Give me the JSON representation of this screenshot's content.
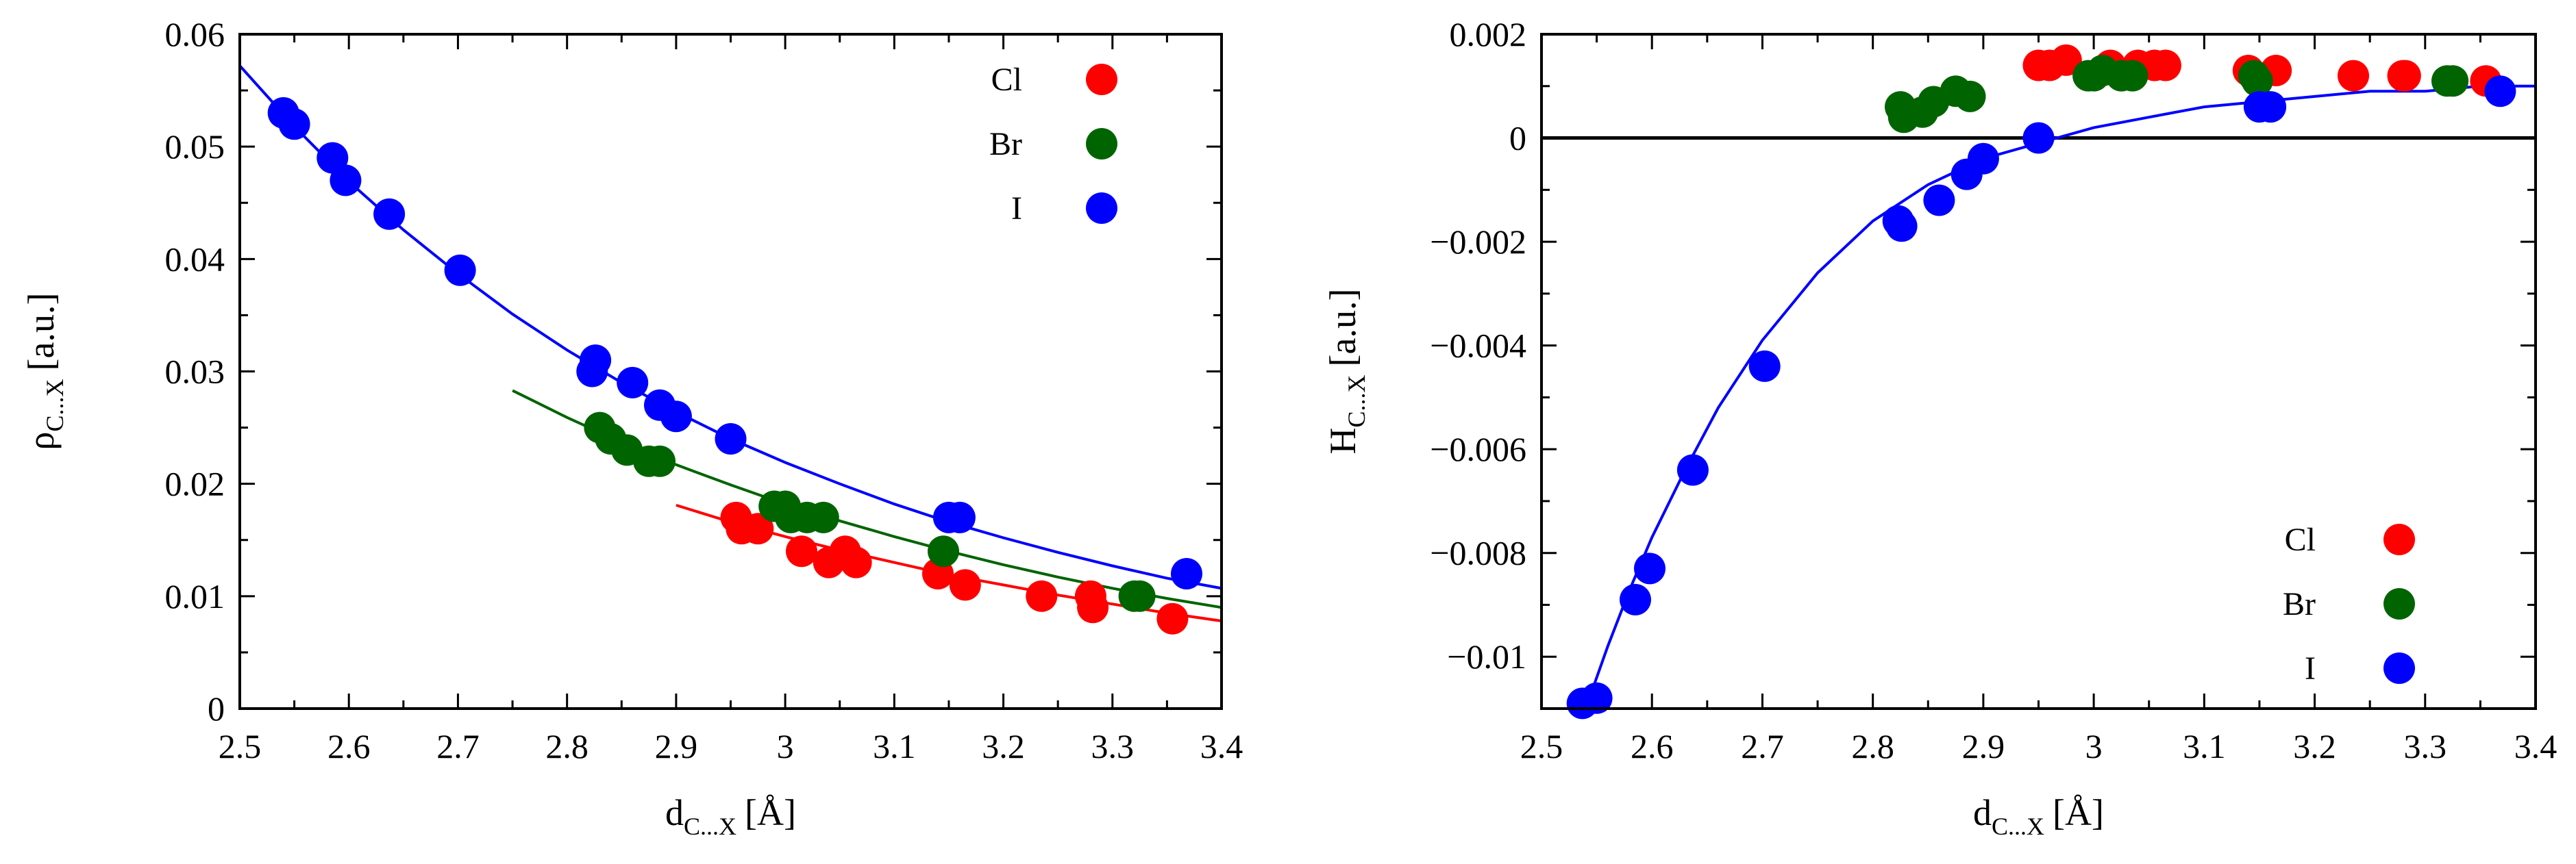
{
  "chart_data": [
    {
      "type": "scatter",
      "title": "",
      "xlabel": {
        "main": "d",
        "sub": "C...X",
        "unit": "[Å]"
      },
      "ylabel": {
        "main": "ρ",
        "sub": "C...X",
        "unit": "[a.u.]"
      },
      "xlim": [
        2.5,
        3.4
      ],
      "ylim": [
        0,
        0.06
      ],
      "xticks": [
        2.5,
        2.6,
        2.7,
        2.8,
        2.9,
        3.0,
        3.1,
        3.2,
        3.3,
        3.4
      ],
      "xtick_labels": [
        "2.5",
        "2.6",
        "2.7",
        "2.8",
        "2.9",
        "3",
        "3.1",
        "3.2",
        "3.3",
        "3.4"
      ],
      "yticks": [
        0,
        0.01,
        0.02,
        0.03,
        0.04,
        0.05,
        0.06
      ],
      "ytick_labels": [
        "0",
        "0.01",
        "0.02",
        "0.03",
        "0.04",
        "0.05",
        "0.06"
      ],
      "legend_position": "top-right",
      "series": [
        {
          "name": "Cl",
          "color": "#ff0000",
          "points": [
            [
              2.955,
              0.017
            ],
            [
              2.96,
              0.016
            ],
            [
              2.975,
              0.016
            ],
            [
              3.015,
              0.014
            ],
            [
              3.04,
              0.013
            ],
            [
              3.055,
              0.014
            ],
            [
              3.065,
              0.013
            ],
            [
              3.14,
              0.012
            ],
            [
              3.165,
              0.011
            ],
            [
              3.235,
              0.01
            ],
            [
              3.28,
              0.01
            ],
            [
              3.282,
              0.009
            ],
            [
              3.355,
              0.008
            ]
          ],
          "fit": {
            "x": [
              2.9,
              2.95,
              3.0,
              3.05,
              3.1,
              3.15,
              3.2,
              3.25,
              3.3,
              3.35,
              3.4
            ],
            "y": [
              0.0181,
              0.0166,
              0.0153,
              0.0141,
              0.013,
              0.0119,
              0.011,
              0.0101,
              0.0093,
              0.0085,
              0.0078
            ]
          }
        },
        {
          "name": "Br",
          "color": "#006400",
          "points": [
            [
              2.83,
              0.025
            ],
            [
              2.84,
              0.024
            ],
            [
              2.855,
              0.023
            ],
            [
              2.875,
              0.022
            ],
            [
              2.885,
              0.022
            ],
            [
              2.99,
              0.018
            ],
            [
              3.0,
              0.018
            ],
            [
              3.005,
              0.017
            ],
            [
              3.02,
              0.017
            ],
            [
              3.035,
              0.017
            ],
            [
              3.145,
              0.014
            ],
            [
              3.32,
              0.01
            ],
            [
              3.325,
              0.01
            ]
          ],
          "fit": {
            "x": [
              2.75,
              2.8,
              2.85,
              2.9,
              2.95,
              3.0,
              3.05,
              3.1,
              3.15,
              3.2,
              3.25,
              3.3,
              3.35,
              3.4
            ],
            "y": [
              0.0283,
              0.0259,
              0.0237,
              0.0217,
              0.0199,
              0.0182,
              0.0167,
              0.0153,
              0.014,
              0.0128,
              0.0117,
              0.0107,
              0.0098,
              0.009
            ]
          }
        },
        {
          "name": "I",
          "color": "#0000ff",
          "points": [
            [
              2.54,
              0.053
            ],
            [
              2.55,
              0.052
            ],
            [
              2.585,
              0.049
            ],
            [
              2.597,
              0.047
            ],
            [
              2.637,
              0.044
            ],
            [
              2.702,
              0.039
            ],
            [
              2.823,
              0.03
            ],
            [
              2.826,
              0.031
            ],
            [
              2.86,
              0.029
            ],
            [
              2.885,
              0.027
            ],
            [
              2.9,
              0.026
            ],
            [
              2.95,
              0.024
            ],
            [
              3.15,
              0.017
            ],
            [
              3.16,
              0.017
            ],
            [
              3.368,
              0.012
            ]
          ],
          "fit": {
            "x": [
              2.5,
              2.55,
              2.6,
              2.65,
              2.7,
              2.75,
              2.8,
              2.85,
              2.9,
              2.95,
              3.0,
              3.05,
              3.1,
              3.15,
              3.2,
              3.25,
              3.3,
              3.35,
              3.4
            ],
            "y": [
              0.0572,
              0.0518,
              0.0469,
              0.0426,
              0.0387,
              0.0351,
              0.0319,
              0.029,
              0.0264,
              0.024,
              0.0219,
              0.02,
              0.0182,
              0.0166,
              0.0152,
              0.0139,
              0.0127,
              0.0116,
              0.0107
            ]
          }
        }
      ]
    },
    {
      "type": "scatter",
      "title": "",
      "xlabel": {
        "main": "d",
        "sub": "C...X",
        "unit": "[Å]"
      },
      "ylabel": {
        "main": "H",
        "sub": "C...X",
        "unit": "[a.u.]"
      },
      "xlim": [
        2.5,
        3.4
      ],
      "ylim": [
        -0.011,
        0.002
      ],
      "xticks": [
        2.5,
        2.6,
        2.7,
        2.8,
        2.9,
        3.0,
        3.1,
        3.2,
        3.3,
        3.4
      ],
      "xtick_labels": [
        "2.5",
        "2.6",
        "2.7",
        "2.8",
        "2.9",
        "3",
        "3.1",
        "3.2",
        "3.3",
        "3.4"
      ],
      "yticks": [
        -0.01,
        -0.008,
        -0.006,
        -0.004,
        -0.002,
        0,
        0.002
      ],
      "ytick_labels": [
        "−0.01",
        "−0.008",
        "−0.006",
        "−0.004",
        "−0.002",
        "0",
        "0.002"
      ],
      "zero_line": true,
      "legend_position": "bottom-right",
      "series": [
        {
          "name": "Cl",
          "color": "#ff0000",
          "points": [
            [
              2.95,
              0.0014
            ],
            [
              2.96,
              0.0014
            ],
            [
              2.975,
              0.0015
            ],
            [
              3.015,
              0.0014
            ],
            [
              3.04,
              0.0014
            ],
            [
              3.055,
              0.0014
            ],
            [
              3.065,
              0.0014
            ],
            [
              3.14,
              0.0013
            ],
            [
              3.165,
              0.0013
            ],
            [
              3.235,
              0.0012
            ],
            [
              3.28,
              0.0012
            ],
            [
              3.282,
              0.0012
            ],
            [
              3.355,
              0.0011
            ]
          ]
        },
        {
          "name": "Br",
          "color": "#006400",
          "points": [
            [
              2.825,
              0.0006
            ],
            [
              2.828,
              0.0004
            ],
            [
              2.845,
              0.0005
            ],
            [
              2.855,
              0.0007
            ],
            [
              2.875,
              0.0009
            ],
            [
              2.888,
              0.0008
            ],
            [
              2.995,
              0.0012
            ],
            [
              3.0,
              0.0012
            ],
            [
              3.008,
              0.0013
            ],
            [
              3.025,
              0.0012
            ],
            [
              3.035,
              0.0012
            ],
            [
              3.145,
              0.0012
            ],
            [
              3.148,
              0.0011
            ],
            [
              3.32,
              0.0011
            ],
            [
              3.325,
              0.0011
            ]
          ]
        },
        {
          "name": "I",
          "color": "#0000ff",
          "points": [
            [
              2.537,
              -0.0109
            ],
            [
              2.55,
              -0.0108
            ],
            [
              2.585,
              -0.0089
            ],
            [
              2.598,
              -0.0083
            ],
            [
              2.637,
              -0.0064
            ],
            [
              2.702,
              -0.0044
            ],
            [
              2.823,
              -0.0016
            ],
            [
              2.826,
              -0.0017
            ],
            [
              2.86,
              -0.0012
            ],
            [
              2.885,
              -0.0007
            ],
            [
              2.9,
              -0.0004
            ],
            [
              2.95,
              0.0
            ],
            [
              3.15,
              0.0006
            ],
            [
              3.16,
              0.0006
            ],
            [
              3.368,
              0.0009
            ]
          ],
          "fit": {
            "x": [
              2.54,
              2.56,
              2.58,
              2.6,
              2.63,
              2.66,
              2.7,
              2.75,
              2.8,
              2.85,
              2.9,
              2.95,
              3.0,
              3.05,
              3.1,
              3.15,
              3.2,
              3.25,
              3.3,
              3.35,
              3.4
            ],
            "y": [
              -0.011,
              -0.0098,
              -0.0087,
              -0.0077,
              -0.0064,
              -0.0052,
              -0.0039,
              -0.0026,
              -0.0016,
              -0.0009,
              -0.0004,
              -0.0001,
              0.0002,
              0.0004,
              0.0006,
              0.0007,
              0.0008,
              0.0009,
              0.0009,
              0.001,
              0.001
            ]
          }
        }
      ]
    }
  ]
}
